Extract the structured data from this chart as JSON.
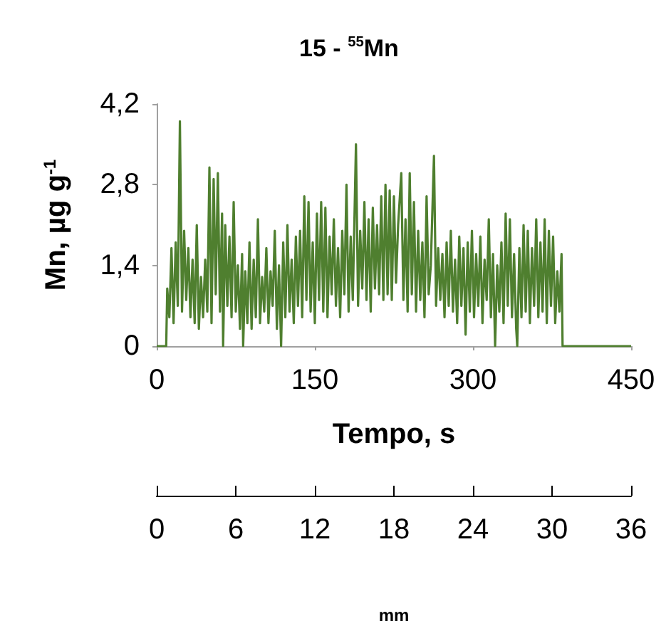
{
  "chart_data": {
    "type": "line",
    "title": "15 - $^{55}$Mn",
    "xlabel": "Tempo, s",
    "ylabel": "Mn, µg g$^{-1}$",
    "x2label": "mm",
    "xlim": [
      0,
      450
    ],
    "xticks": [
      0,
      150,
      300,
      450
    ],
    "ylim": [
      0,
      4.2
    ],
    "yticks": [
      0,
      {
        "value": 1.4,
        "label": "1,4"
      },
      {
        "value": 2.8,
        "label": "2,8"
      },
      {
        "value": 4.2,
        "label": "4,2"
      }
    ],
    "x2lim": [
      0,
      36
    ],
    "x2ticks": [
      0,
      6,
      12,
      18,
      24,
      30,
      36
    ],
    "grid": false,
    "marker": "none",
    "line_style": "solid",
    "series": [
      {
        "color": "#4f7f2f",
        "x": [
          0,
          9,
          10,
          12,
          14,
          16,
          18,
          20,
          22,
          24,
          26,
          28,
          30,
          32,
          34,
          36,
          38,
          40,
          42,
          44,
          46,
          48,
          50,
          52,
          54,
          56,
          58,
          60,
          62,
          63,
          65,
          67,
          69,
          71,
          73,
          75,
          77,
          79,
          81,
          82,
          84,
          86,
          88,
          90,
          92,
          94,
          96,
          98,
          100,
          102,
          104,
          106,
          108,
          110,
          112,
          114,
          116,
          118,
          120,
          122,
          124,
          126,
          128,
          130,
          132,
          134,
          136,
          138,
          140,
          142,
          144,
          146,
          148,
          150,
          152,
          154,
          156,
          158,
          160,
          162,
          164,
          166,
          168,
          170,
          172,
          174,
          176,
          178,
          180,
          182,
          184,
          186,
          189,
          191,
          193,
          195,
          197,
          199,
          201,
          203,
          205,
          207,
          209,
          211,
          213,
          215,
          217,
          219,
          221,
          223,
          225,
          227,
          229,
          232,
          234,
          236,
          238,
          240,
          242,
          244,
          246,
          248,
          250,
          252,
          254,
          256,
          258,
          260,
          263,
          265,
          267,
          269,
          271,
          273,
          275,
          277,
          279,
          281,
          283,
          285,
          287,
          289,
          291,
          293,
          295,
          297,
          299,
          301,
          303,
          305,
          307,
          309,
          311,
          313,
          315,
          317,
          319,
          321,
          323,
          325,
          327,
          329,
          331,
          333,
          335,
          337,
          339,
          341,
          342,
          344,
          346,
          348,
          350,
          352,
          354,
          356,
          358,
          360,
          362,
          364,
          366,
          368,
          370,
          372,
          374,
          376,
          378,
          380,
          382,
          384,
          385,
          450
        ],
        "values": [
          0,
          0,
          1.0,
          0.5,
          1.7,
          0.4,
          1.8,
          0.7,
          3.9,
          0.6,
          2.0,
          0.8,
          1.7,
          0.5,
          1.5,
          0.4,
          2.1,
          0.3,
          1.2,
          0.5,
          1.5,
          0.6,
          3.1,
          0.4,
          2.9,
          0.9,
          3.0,
          0.6,
          2.3,
          0,
          2.1,
          0.7,
          1.9,
          0.5,
          2.5,
          0.6,
          1.4,
          0.3,
          1.6,
          0,
          1.3,
          0.4,
          1.8,
          0.3,
          1.5,
          0.5,
          2.2,
          0.4,
          1.2,
          0.6,
          1.7,
          0.4,
          1.3,
          0.7,
          2.0,
          0.3,
          1.4,
          0,
          1.8,
          0.5,
          2.1,
          0.6,
          1.5,
          0.4,
          1.9,
          0.7,
          2.0,
          0.5,
          2.6,
          0.8,
          2.5,
          0.6,
          1.8,
          0.4,
          2.3,
          0.8,
          2.5,
          0.6,
          2.4,
          0.5,
          1.9,
          0.9,
          2.2,
          0.7,
          1.7,
          0.5,
          2.0,
          0.9,
          2.8,
          0.6,
          1.9,
          0.8,
          3.5,
          0.7,
          2.0,
          1.0,
          2.5,
          0.8,
          2.2,
          0.6,
          2.4,
          1.0,
          2.1,
          0.9,
          2.6,
          0.8,
          2.8,
          0.9,
          2.7,
          0.8,
          2.6,
          1.1,
          2.1,
          3.0,
          0.8,
          2.2,
          0.6,
          3.0,
          0.9,
          2.5,
          0.6,
          2.0,
          0.8,
          1.8,
          0.5,
          2.6,
          0.9,
          1.4,
          3.3,
          0.7,
          1.7,
          0.8,
          1.6,
          0.5,
          1.8,
          0.7,
          2.0,
          0.6,
          1.5,
          0.4,
          1.9,
          0.7,
          1.7,
          0.2,
          1.8,
          0.6,
          2.0,
          0.5,
          1.6,
          0.7,
          1.9,
          0.4,
          1.5,
          0.8,
          2.2,
          0.5,
          1.6,
          0,
          1.4,
          0.6,
          1.8,
          0.4,
          2.3,
          0.7,
          2.2,
          0.5,
          1.6,
          0.3,
          0,
          1.7,
          0.5,
          2.1,
          0.6,
          2.0,
          0.4,
          1.7,
          0.7,
          2.2,
          0.5,
          1.8,
          0.6,
          2.2,
          0.4,
          2.0,
          0.7,
          1.9,
          0.4,
          1.3,
          0.6,
          1.6,
          0,
          0
        ]
      }
    ]
  }
}
